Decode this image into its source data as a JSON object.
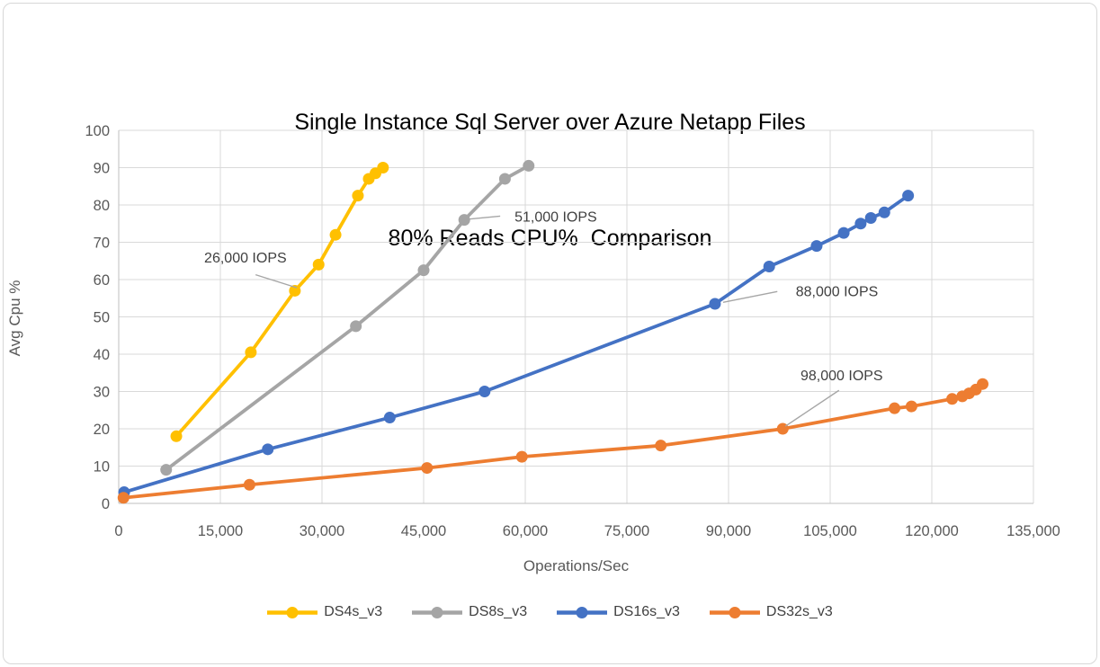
{
  "title": {
    "line1": "Single Instance Sql Server over Azure Netapp Files",
    "line2": "80% Reads CPU%  Comparison"
  },
  "chart_data": {
    "type": "line",
    "title": "Single Instance Sql Server over Azure Netapp Files — 80% Reads CPU% Comparison",
    "xlabel": "Operations/Sec",
    "ylabel": "Avg Cpu %",
    "xlim": [
      0,
      135000
    ],
    "ylim": [
      0,
      100
    ],
    "grid": true,
    "legend_position": "bottom",
    "x_ticks": [
      {
        "v": 0,
        "label": "0"
      },
      {
        "v": 15000,
        "label": "15,000"
      },
      {
        "v": 30000,
        "label": "30,000"
      },
      {
        "v": 45000,
        "label": "45,000"
      },
      {
        "v": 60000,
        "label": "60,000"
      },
      {
        "v": 75000,
        "label": "75,000"
      },
      {
        "v": 90000,
        "label": "90,000"
      },
      {
        "v": 105000,
        "label": "105,000"
      },
      {
        "v": 120000,
        "label": "120,000"
      },
      {
        "v": 135000,
        "label": "135,000"
      }
    ],
    "y_ticks": [
      {
        "v": 0,
        "label": "0"
      },
      {
        "v": 10,
        "label": "10"
      },
      {
        "v": 20,
        "label": "20"
      },
      {
        "v": 30,
        "label": "30"
      },
      {
        "v": 40,
        "label": "40"
      },
      {
        "v": 50,
        "label": "50"
      },
      {
        "v": 60,
        "label": "60"
      },
      {
        "v": 70,
        "label": "70"
      },
      {
        "v": 80,
        "label": "80"
      },
      {
        "v": 90,
        "label": "90"
      },
      {
        "v": 100,
        "label": "100"
      }
    ],
    "series": [
      {
        "name": "DS4s_v3",
        "color": "#FFC000",
        "points": [
          [
            8500,
            18
          ],
          [
            19500,
            40.5
          ],
          [
            26000,
            57
          ],
          [
            29500,
            64
          ],
          [
            32000,
            72
          ],
          [
            35300,
            82.5
          ],
          [
            36900,
            87
          ],
          [
            37900,
            88.5
          ],
          [
            39000,
            90
          ]
        ]
      },
      {
        "name": "DS8s_v3",
        "color": "#A5A5A5",
        "points": [
          [
            7000,
            9
          ],
          [
            35000,
            47.5
          ],
          [
            45000,
            62.5
          ],
          [
            51000,
            76
          ],
          [
            57000,
            87
          ],
          [
            60500,
            90.5
          ]
        ]
      },
      {
        "name": "DS16s_v3",
        "color": "#4472C4",
        "points": [
          [
            800,
            3
          ],
          [
            22000,
            14.5
          ],
          [
            40000,
            23
          ],
          [
            54000,
            30
          ],
          [
            88000,
            53.5
          ],
          [
            96000,
            63.5
          ],
          [
            103000,
            69
          ],
          [
            107000,
            72.5
          ],
          [
            109500,
            75
          ],
          [
            111000,
            76.5
          ],
          [
            113000,
            78
          ],
          [
            116500,
            82.5
          ]
        ]
      },
      {
        "name": "DS32s_v3",
        "color": "#ED7D31",
        "points": [
          [
            700,
            1.5
          ],
          [
            19300,
            5
          ],
          [
            45500,
            9.5
          ],
          [
            59500,
            12.5
          ],
          [
            80000,
            15.5
          ],
          [
            98000,
            20
          ],
          [
            114500,
            25.5
          ],
          [
            117000,
            26
          ],
          [
            123000,
            28
          ],
          [
            124500,
            28.7
          ],
          [
            125500,
            29.5
          ],
          [
            126500,
            30.5
          ],
          [
            127500,
            32
          ]
        ]
      }
    ],
    "annotations": [
      {
        "text": "26,000 IOPS",
        "tx": 18700,
        "ty": 66,
        "leader": [
          [
            20200,
            61.3
          ],
          [
            26300,
            57.8
          ]
        ]
      },
      {
        "text": "51,000 IOPS",
        "tx": 64500,
        "ty": 77,
        "leader": [
          [
            51600,
            76.2
          ],
          [
            56300,
            77
          ]
        ]
      },
      {
        "text": "88,000 IOPS",
        "tx": 106000,
        "ty": 57,
        "leader": [
          [
            89200,
            53.9
          ],
          [
            97200,
            56.8
          ]
        ]
      },
      {
        "text": "98,000 IOPS",
        "tx": 106700,
        "ty": 34.5,
        "leader": [
          [
            98400,
            20.7
          ],
          [
            106300,
            30.3
          ]
        ]
      }
    ],
    "colors": {
      "gridline": "#D9D9D9",
      "axis_line": "#BFBFBF",
      "tick_text": "#595959",
      "annotation_text": "#404040",
      "leader_line": "#A6A6A6"
    }
  }
}
